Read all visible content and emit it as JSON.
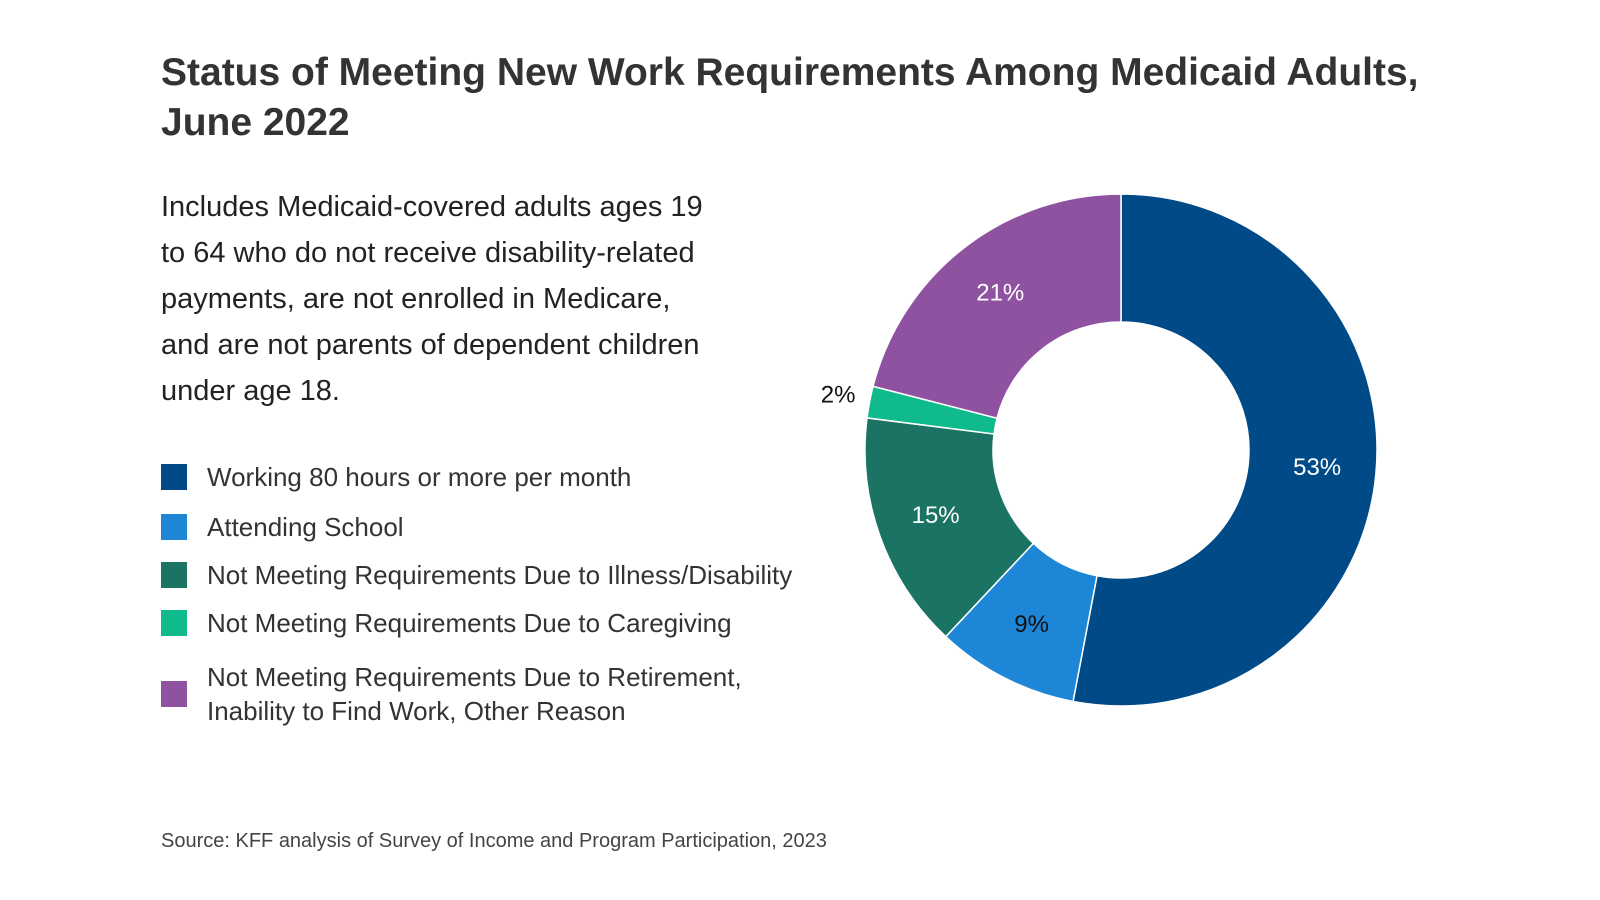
{
  "title": "Status of Meeting New Work Requirements Among Medicaid Adults, June 2022",
  "subtitle": "Includes Medicaid-covered adults ages 19 to 64 who do not receive disability-related payments, are not enrolled in Medicare, and are not parents of dependent children under age 18.",
  "source": "Source: KFF analysis of Survey of Income and Program Participation, 2023",
  "chart_data": {
    "type": "pie",
    "donut": true,
    "title": "Status of Meeting New Work Requirements Among Medicaid Adults, June 2022",
    "legend_position": "left",
    "categories": [
      "Working 80 hours or more per month",
      "Attending School",
      "Not Meeting Requirements Due to Illness/Disability",
      "Not Meeting Requirements Due to Caregiving",
      "Not Meeting Requirements Due to Retirement, Inability to Find Work, Other Reason"
    ],
    "values": [
      53,
      9,
      15,
      2,
      21
    ],
    "labels": [
      "53%",
      "9%",
      "15%",
      "2%",
      "21%"
    ],
    "colors": [
      "#004a87",
      "#1e86d6",
      "#1b7364",
      "#0fbb8c",
      "#8f52a1"
    ],
    "label_colors": [
      "#ffffff",
      "#111111",
      "#ffffff",
      "#111111",
      "#ffffff"
    ],
    "label_outside": [
      false,
      false,
      false,
      true,
      false
    ]
  }
}
